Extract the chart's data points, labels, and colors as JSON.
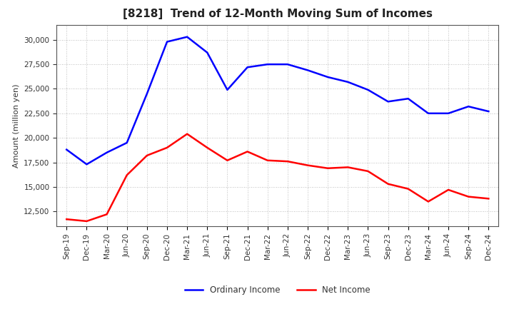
{
  "title": "[8218]  Trend of 12-Month Moving Sum of Incomes",
  "ylabel": "Amount (million yen)",
  "background_color": "#ffffff",
  "grid_color": "#aaaaaa",
  "ordinary_income_color": "#0000ff",
  "net_income_color": "#ff0000",
  "line_width": 1.8,
  "x_labels": [
    "Sep-19",
    "Dec-19",
    "Mar-20",
    "Jun-20",
    "Sep-20",
    "Dec-20",
    "Mar-21",
    "Jun-21",
    "Sep-21",
    "Dec-21",
    "Mar-22",
    "Jun-22",
    "Sep-22",
    "Dec-22",
    "Mar-23",
    "Jun-23",
    "Sep-23",
    "Dec-23",
    "Mar-24",
    "Jun-24",
    "Sep-24",
    "Dec-24"
  ],
  "ordinary_income": [
    18800,
    17300,
    18500,
    19500,
    24500,
    29800,
    30300,
    28700,
    24900,
    27200,
    27500,
    27500,
    26900,
    26200,
    25700,
    24900,
    23700,
    24000,
    22500,
    22500,
    23200,
    22700
  ],
  "net_income": [
    11700,
    11500,
    12200,
    16200,
    18200,
    19000,
    20400,
    19000,
    17700,
    18600,
    17700,
    17600,
    17200,
    16900,
    17000,
    16600,
    15300,
    14800,
    13500,
    14700,
    14000,
    13800
  ],
  "ylim": [
    11000,
    31500
  ],
  "yticks": [
    12500,
    15000,
    17500,
    20000,
    22500,
    25000,
    27500,
    30000
  ],
  "legend_labels": [
    "Ordinary Income",
    "Net Income"
  ],
  "title_color": "#222222",
  "title_fontsize": 11,
  "axis_label_fontsize": 8,
  "tick_fontsize": 7.5
}
